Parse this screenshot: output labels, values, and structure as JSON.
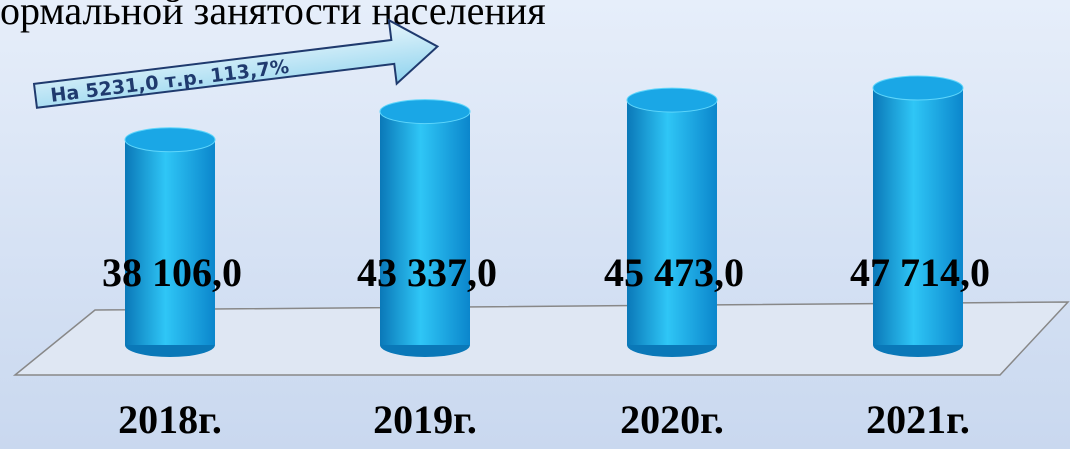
{
  "chart_data": {
    "type": "bar3d",
    "title": "ормальной занятости населения",
    "annotation": "На 5231,0 т.р.   113,7%",
    "categories": [
      "2018г.",
      "2019г.",
      "2020г.",
      "2021г."
    ],
    "values": [
      38106,
      43337,
      45473,
      47714
    ],
    "value_labels": [
      "38 106,0",
      "43 337,0",
      "45 473,0",
      "47 714,0"
    ],
    "color": "#1aa7e6"
  }
}
